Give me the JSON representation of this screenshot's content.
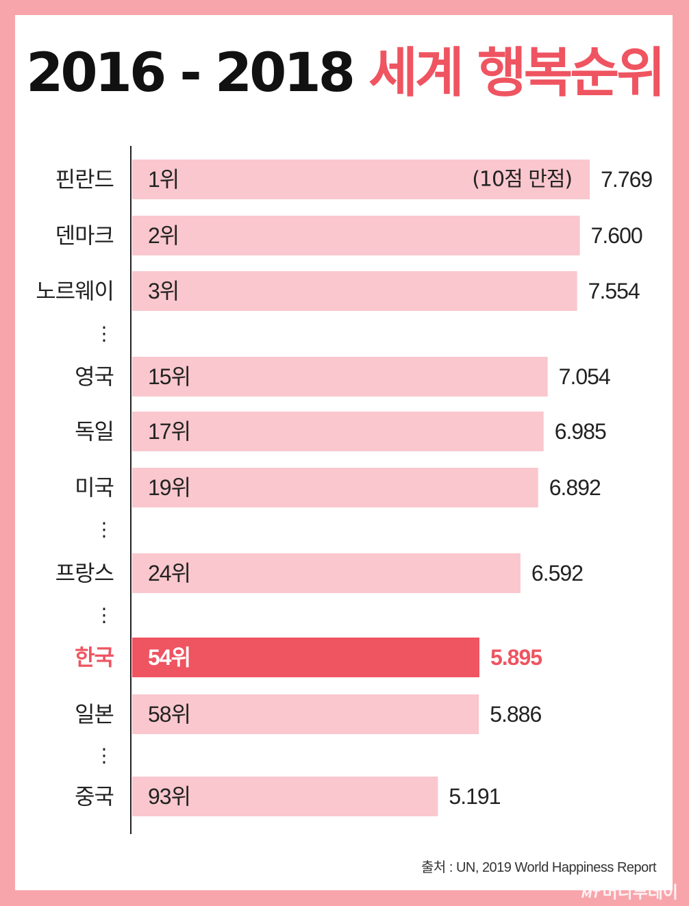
{
  "title": {
    "years": "2016 - 2018",
    "subject": "세계 행복순위"
  },
  "chart_data": {
    "type": "bar",
    "orientation": "horizontal",
    "title": "2016 - 2018 세계 행복순위",
    "categories": [
      "핀란드",
      "덴마크",
      "노르웨이",
      "영국",
      "독일",
      "미국",
      "프랑스",
      "한국",
      "일본",
      "중국"
    ],
    "ranks": [
      "1위",
      "2위",
      "3위",
      "15위",
      "17위",
      "19위",
      "24위",
      "54위",
      "58위",
      "93위"
    ],
    "values": [
      7.769,
      7.6,
      7.554,
      7.054,
      6.985,
      6.892,
      6.592,
      5.895,
      5.886,
      5.191
    ],
    "value_labels": [
      "7.769",
      "7.600",
      "7.554",
      "7.054",
      "6.985",
      "6.892",
      "6.592",
      "5.895",
      "5.886",
      "5.191"
    ],
    "scale_note": "(10점 만점)",
    "highlight": "한국",
    "gap_marker": "⋮",
    "colors": {
      "bar": "#f9c7cd",
      "highlight_bar": "#ef5461",
      "highlight_text": "#ef5461",
      "text": "#222222",
      "axis": "#222222"
    }
  },
  "source": "출처 : UN, 2019 World Happiness Report",
  "watermark": {
    "brand_mark": "MT",
    "text": "머니투데이"
  }
}
